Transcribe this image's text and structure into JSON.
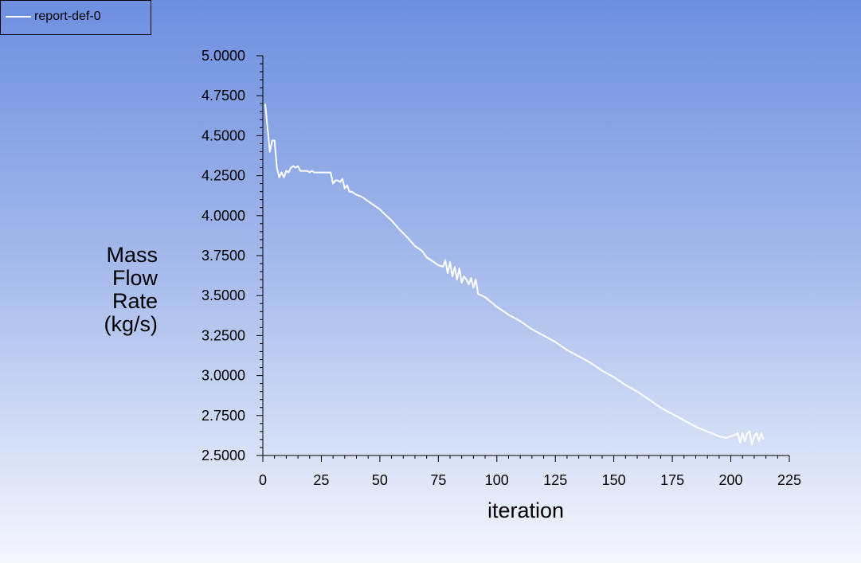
{
  "legend": {
    "entries": [
      "report-def-0"
    ]
  },
  "chart_data": {
    "type": "line",
    "title": "",
    "xlabel": "iteration",
    "ylabel_lines": [
      "Mass",
      "Flow",
      "Rate",
      "(kg/s)"
    ],
    "xlim": [
      0,
      225
    ],
    "ylim": [
      2.5,
      5.0
    ],
    "x_ticks": [
      "0",
      "25",
      "50",
      "75",
      "100",
      "125",
      "150",
      "175",
      "200",
      "225"
    ],
    "y_ticks": [
      "2.5000",
      "2.7500",
      "3.0000",
      "3.2500",
      "3.5000",
      "3.7500",
      "4.0000",
      "4.2500",
      "4.5000",
      "4.7500",
      "5.0000"
    ],
    "line_color": "#ffffff",
    "series": [
      {
        "name": "report-def-0",
        "x": [
          1,
          2,
          3,
          4,
          5,
          6,
          7,
          8,
          9,
          10,
          11,
          12,
          13,
          14,
          15,
          16,
          17,
          18,
          19,
          20,
          21,
          22,
          23,
          24,
          25,
          26,
          27,
          28,
          29,
          30,
          31,
          32,
          33,
          34,
          35,
          36,
          37,
          38,
          40,
          42,
          45,
          48,
          50,
          52,
          55,
          58,
          60,
          62,
          65,
          68,
          70,
          72,
          75,
          77,
          78,
          79,
          80,
          81,
          82,
          83,
          84,
          85,
          86,
          87,
          88,
          89,
          90,
          91,
          92,
          95,
          100,
          105,
          110,
          115,
          120,
          125,
          130,
          135,
          140,
          145,
          150,
          155,
          160,
          165,
          170,
          175,
          180,
          185,
          190,
          195,
          198,
          200,
          202,
          203,
          204,
          205,
          206,
          207,
          208,
          209,
          210,
          211,
          212,
          213,
          214
        ],
        "y": [
          4.7,
          4.55,
          4.4,
          4.47,
          4.47,
          4.3,
          4.24,
          4.27,
          4.24,
          4.28,
          4.27,
          4.3,
          4.31,
          4.3,
          4.31,
          4.28,
          4.28,
          4.28,
          4.28,
          4.27,
          4.28,
          4.27,
          4.27,
          4.27,
          4.27,
          4.27,
          4.27,
          4.27,
          4.27,
          4.2,
          4.22,
          4.22,
          4.21,
          4.23,
          4.17,
          4.19,
          4.15,
          4.15,
          4.13,
          4.12,
          4.09,
          4.06,
          4.04,
          4.01,
          3.97,
          3.92,
          3.89,
          3.86,
          3.81,
          3.78,
          3.74,
          3.72,
          3.69,
          3.68,
          3.72,
          3.64,
          3.71,
          3.62,
          3.68,
          3.6,
          3.67,
          3.58,
          3.62,
          3.6,
          3.57,
          3.61,
          3.55,
          3.6,
          3.51,
          3.49,
          3.43,
          3.38,
          3.34,
          3.29,
          3.25,
          3.21,
          3.16,
          3.12,
          3.08,
          3.03,
          2.99,
          2.94,
          2.9,
          2.85,
          2.8,
          2.76,
          2.72,
          2.68,
          2.65,
          2.62,
          2.61,
          2.62,
          2.63,
          2.64,
          2.58,
          2.64,
          2.59,
          2.64,
          2.65,
          2.57,
          2.62,
          2.64,
          2.59,
          2.64,
          2.6
        ]
      }
    ]
  }
}
